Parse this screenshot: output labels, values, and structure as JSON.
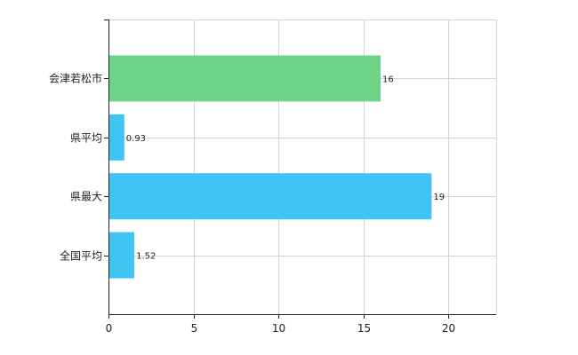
{
  "chart_data": {
    "type": "bar",
    "orientation": "horizontal",
    "categories": [
      "会津若松市",
      "県平均",
      "県最大",
      "全国平均"
    ],
    "values": [
      16,
      0.93,
      19,
      1.52
    ],
    "data_labels": [
      "16",
      "0.93",
      "19",
      "1.52"
    ],
    "bar_colors": [
      "#6fd488",
      "#3fc4f4",
      "#3fc4f4",
      "#3fc4f4"
    ],
    "x_ticks": [
      0,
      5,
      10,
      15,
      20
    ],
    "xlim": [
      0,
      22.8
    ],
    "grid": true,
    "title": "",
    "xlabel": "",
    "ylabel": ""
  },
  "colors": {
    "highlight_bar": "#6fd488",
    "comparison_bar": "#3fc4f4",
    "gridline": "#d4d4d4",
    "axis": "#222222"
  }
}
